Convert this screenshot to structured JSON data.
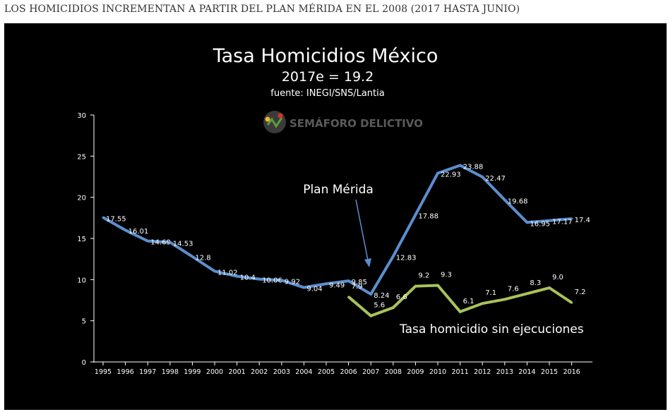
{
  "heading": "LOS HOMICIDIOS INCREMENTAN A PARTIR DEL PLAN MÉRIDA EN EL 2008 (2017 HASTA JUNIO)",
  "chart_data": {
    "type": "line",
    "title": "Tasa Homicidios México",
    "subtitle": "2017e = 19.2",
    "source": "fuente: INEGI/SNS/Lantia",
    "logo_text": "SEMÁFORO DELICTIVO",
    "xlabel": "",
    "ylabel": "",
    "ylim": [
      0,
      30
    ],
    "yticks": [
      0,
      5,
      10,
      15,
      20,
      25,
      30
    ],
    "grid": false,
    "legend": "none",
    "x": [
      "1995",
      "1996",
      "1997",
      "1998",
      "1999",
      "2000",
      "2001",
      "2002",
      "2003",
      "2004",
      "2005",
      "2006",
      "2007",
      "2008",
      "2009",
      "2010",
      "2011",
      "2012",
      "2013",
      "2014",
      "2015",
      "2016"
    ],
    "series": [
      {
        "name": "",
        "color": "#5b8fcf",
        "values": [
          17.55,
          16.01,
          14.69,
          14.53,
          12.8,
          11.02,
          10.4,
          10.06,
          9.92,
          9.04,
          9.49,
          9.85,
          8.24,
          12.83,
          17.88,
          22.93,
          23.88,
          22.47,
          19.68,
          16.95,
          17.17,
          17.4
        ],
        "labels": [
          "17.55",
          "16.01",
          "14.69",
          "14.53",
          "12.8",
          "11.02",
          "10.4",
          "10.06",
          "9.92",
          "9.04",
          "9.49",
          "9.85",
          "8.24",
          "12.83",
          "17.88",
          "22.93",
          "23.88",
          "22.47",
          "19.68",
          "16.95",
          "17.17",
          "17.4"
        ]
      },
      {
        "name": "Tasa homicidio sin ejecuciones",
        "color": "#a8c35a",
        "values": [
          null,
          null,
          null,
          null,
          null,
          null,
          null,
          null,
          null,
          null,
          null,
          7.9,
          5.6,
          6.6,
          9.2,
          9.3,
          6.1,
          7.1,
          7.6,
          8.3,
          9.0,
          7.2
        ],
        "labels": [
          null,
          null,
          null,
          null,
          null,
          null,
          null,
          null,
          null,
          null,
          null,
          "7.9",
          "5.6",
          "6.6",
          "9.2",
          "9.3",
          "6.1",
          "7.1",
          "7.6",
          "8.3",
          "9.0",
          "7.2"
        ]
      }
    ],
    "annotations": [
      {
        "text": "Plan Mérida",
        "points_to": "2007"
      },
      {
        "text": "Tasa homicidio sin ejecuciones",
        "series": 1
      }
    ]
  }
}
